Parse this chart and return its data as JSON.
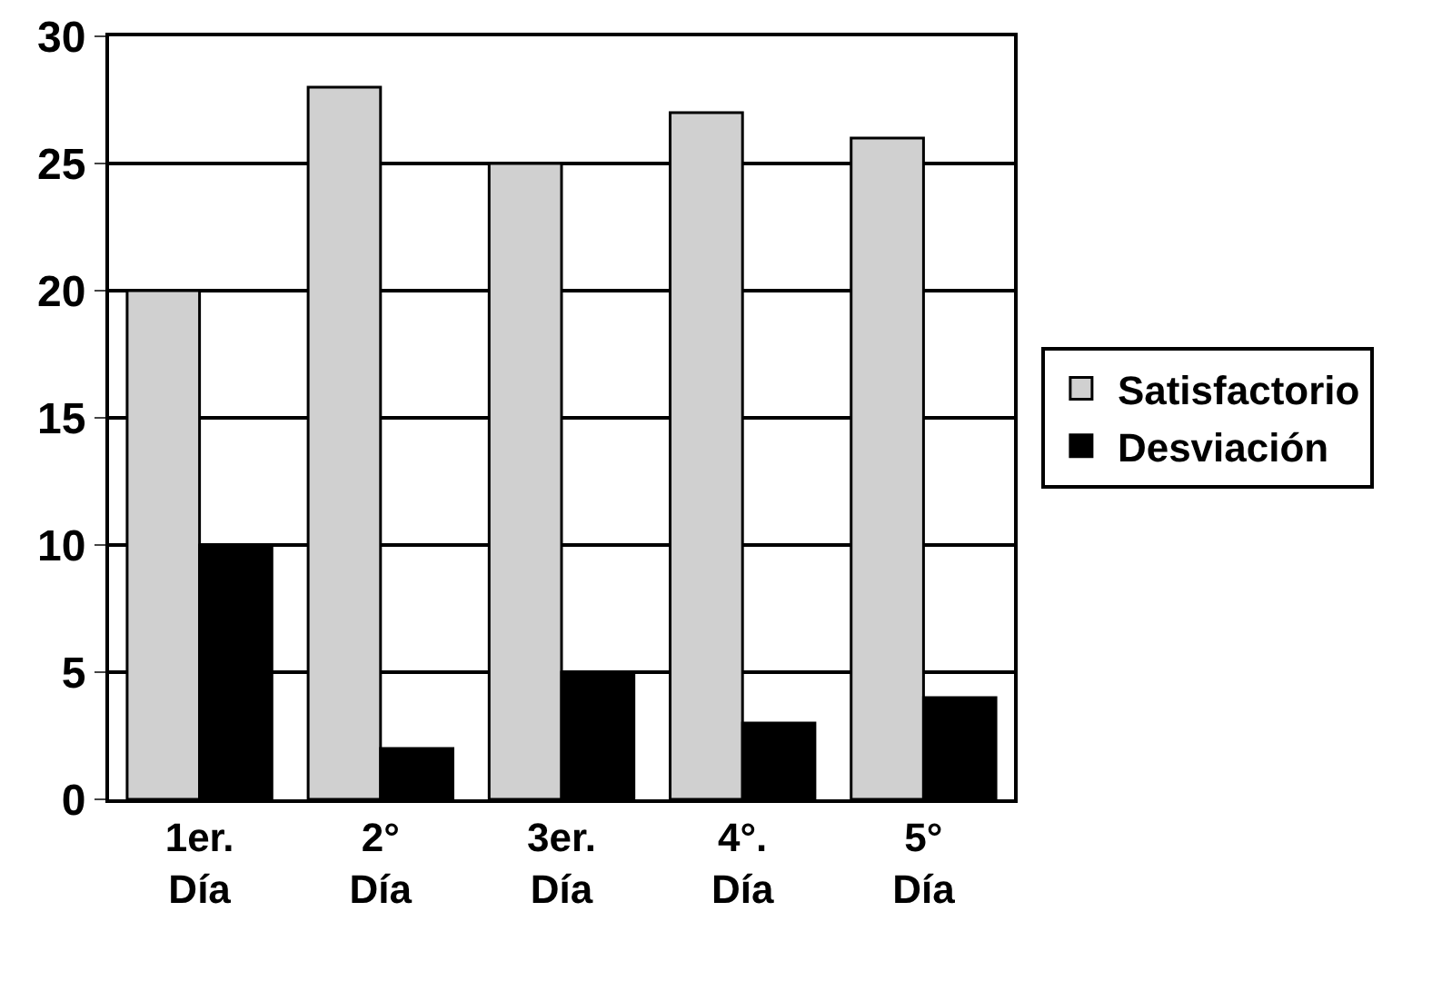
{
  "chart_data": {
    "type": "bar",
    "categories": [
      "1er.\nDía",
      "2°\nDía",
      "3er.\nDía",
      "4°.\nDía",
      "5°\nDía"
    ],
    "series": [
      {
        "name": "Satisfactorio",
        "color": "#d0d0d0",
        "values": [
          20,
          28,
          25,
          27,
          26
        ]
      },
      {
        "name": "Desviación",
        "color": "#000000",
        "values": [
          10,
          2,
          5,
          3,
          4
        ]
      }
    ],
    "ylim": [
      0,
      30
    ],
    "yticks": [
      0,
      5,
      10,
      15,
      20,
      25,
      30
    ],
    "grid": "y",
    "legend": "right"
  }
}
